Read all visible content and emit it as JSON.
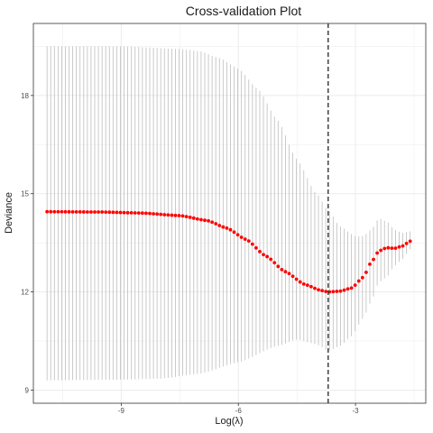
{
  "chart_data": {
    "type": "line",
    "title": "Cross-validation Plot",
    "xlabel": "Log(λ)",
    "ylabel": "Deviance",
    "xlim": [
      -11.25,
      -1.2
    ],
    "ylim": [
      8.6,
      20.2
    ],
    "x_ticks": [
      -9,
      -6,
      -3
    ],
    "x_tick_labels": [
      "-9",
      "-6",
      "-3"
    ],
    "y_ticks": [
      9,
      12,
      15,
      18
    ],
    "y_tick_labels": [
      "9",
      "12",
      "15",
      "18"
    ],
    "grid": true,
    "x_range": [
      -10.9,
      -1.6
    ],
    "n_points": 100,
    "mean_curve": [
      [
        -10.9,
        14.45
      ],
      [
        -9.5,
        14.44
      ],
      [
        -8.5,
        14.41
      ],
      [
        -7.5,
        14.33
      ],
      [
        -6.8,
        14.18
      ],
      [
        -6.3,
        13.95
      ],
      [
        -5.8,
        13.6
      ],
      [
        -5.3,
        13.1
      ],
      [
        -4.8,
        12.62
      ],
      [
        -4.3,
        12.23
      ],
      [
        -3.9,
        12.05
      ],
      [
        -3.7,
        12.0
      ],
      [
        -3.4,
        12.02
      ],
      [
        -3.1,
        12.12
      ],
      [
        -2.8,
        12.45
      ],
      [
        -2.6,
        12.9
      ],
      [
        -2.4,
        13.25
      ],
      [
        -2.2,
        13.35
      ],
      [
        -2.0,
        13.33
      ],
      [
        -1.8,
        13.4
      ],
      [
        -1.6,
        13.55
      ]
    ],
    "upper_band": [
      [
        -10.9,
        19.5
      ],
      [
        -9.0,
        19.5
      ],
      [
        -7.5,
        19.42
      ],
      [
        -7.0,
        19.35
      ],
      [
        -6.5,
        19.15
      ],
      [
        -6.0,
        18.82
      ],
      [
        -5.5,
        18.2
      ],
      [
        -5.0,
        17.25
      ],
      [
        -4.5,
        16.05
      ],
      [
        -4.0,
        15.0
      ],
      [
        -3.7,
        14.5
      ],
      [
        -3.4,
        14.0
      ],
      [
        -3.0,
        13.7
      ],
      [
        -2.8,
        13.7
      ],
      [
        -2.6,
        13.9
      ],
      [
        -2.4,
        14.25
      ],
      [
        -2.2,
        14.15
      ],
      [
        -2.0,
        13.9
      ],
      [
        -1.8,
        13.8
      ],
      [
        -1.6,
        13.85
      ]
    ],
    "lower_band": [
      [
        -10.9,
        9.3
      ],
      [
        -9.0,
        9.32
      ],
      [
        -8.0,
        9.35
      ],
      [
        -7.0,
        9.5
      ],
      [
        -6.0,
        9.85
      ],
      [
        -5.0,
        10.35
      ],
      [
        -4.5,
        10.55
      ],
      [
        -4.0,
        10.4
      ],
      [
        -3.7,
        10.2
      ],
      [
        -3.4,
        10.35
      ],
      [
        -3.1,
        10.65
      ],
      [
        -2.8,
        11.2
      ],
      [
        -2.6,
        11.7
      ],
      [
        -2.4,
        12.3
      ],
      [
        -2.2,
        12.45
      ],
      [
        -2.0,
        12.8
      ],
      [
        -1.8,
        13.0
      ],
      [
        -1.6,
        13.3
      ]
    ],
    "vline_x": -3.7,
    "colors": {
      "mean": "#ff0000",
      "error_bar": "#bdbdbd",
      "vline": "#333333",
      "grid": "#ebebeb",
      "panel_border": "#333333"
    }
  }
}
